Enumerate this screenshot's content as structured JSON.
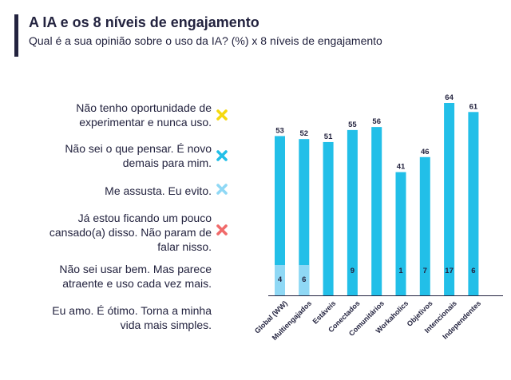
{
  "header": {
    "title": "A IA e os 8 níveis de engajamento",
    "subtitle": "Qual é a sua opinião sobre o uso da IA? (%) x 8 níveis de engajamento"
  },
  "legend": [
    {
      "lines": [
        "Não tenho oportunidade de",
        "experimentar e nunca uso."
      ],
      "color": "#f5d90f",
      "icon": "yellow-x-icon"
    },
    {
      "lines": [
        "Não sei o que pensar. É novo",
        "demais para mim."
      ],
      "color": "#22bfe8",
      "icon": "cyan-x-icon"
    },
    {
      "lines": [
        "Me assusta. Eu evito."
      ],
      "color": "#8fd8f5",
      "icon": "light-blue-x-icon"
    },
    {
      "lines": [
        "Já estou ficando um pouco",
        "cansado(a) disso. Não param de",
        "falar nisso."
      ],
      "color": "#f06a6a",
      "icon": "red-x-icon"
    },
    {
      "lines": [
        "Não sei usar bem. Mas parece",
        "atraente e uso cada vez mais."
      ],
      "color": null,
      "icon": null
    },
    {
      "lines": [
        "Eu amo. É ótimo. Torna a minha",
        "vida mais simples."
      ],
      "color": null,
      "icon": null
    }
  ],
  "chart_data": {
    "type": "bar",
    "categories": [
      "Global (WW)",
      "Multiengajados",
      "Estáveis",
      "Conectados",
      "Comunitários",
      "Workaholics",
      "Objetivos",
      "Intencionais",
      "Independentes"
    ],
    "series": [
      {
        "name": "Eu amo. É ótimo. Torna a minha vida mais simples.",
        "values": [
          53,
          52,
          51,
          55,
          56,
          41,
          46,
          64,
          61
        ],
        "color": "#22bfe8"
      },
      {
        "name": "Me assusta. Eu evito.",
        "values": [
          4,
          6,
          null,
          9,
          null,
          1,
          7,
          17,
          6
        ],
        "color": "#8fd8f5"
      }
    ],
    "overlay_style": [
      true,
      true,
      false,
      false,
      false,
      false,
      false,
      false,
      false
    ],
    "title": "A IA e os 8 níveis de engajamento",
    "xlabel": "",
    "ylabel": ""
  }
}
